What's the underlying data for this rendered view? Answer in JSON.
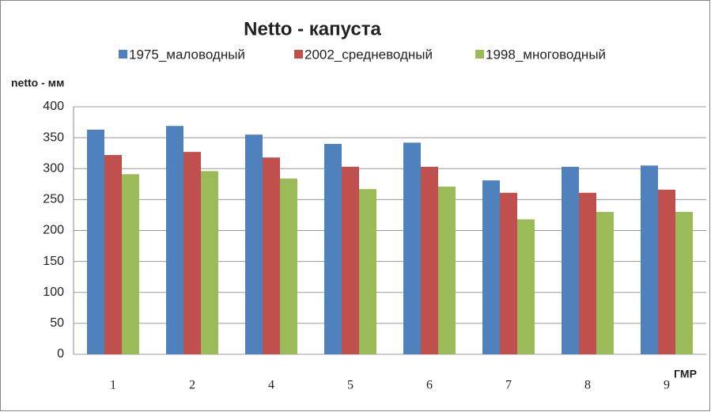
{
  "chart_data": {
    "type": "bar",
    "title": "Netto - капуста",
    "y_label": "netto - мм",
    "x_label": "ГМР",
    "categories": [
      "1",
      "2",
      "4",
      "5",
      "6",
      "7",
      "8",
      "9"
    ],
    "series": [
      {
        "name": "1975_маловодный",
        "color": "#4f81bd",
        "values": [
          363,
          369,
          355,
          340,
          342,
          281,
          303,
          305
        ]
      },
      {
        "name": "2002_средневодный",
        "color": "#c0504d",
        "values": [
          322,
          327,
          318,
          303,
          303,
          261,
          261,
          266
        ]
      },
      {
        "name": "1998_многоводный",
        "color": "#9bbb59",
        "values": [
          291,
          296,
          284,
          267,
          271,
          218,
          230,
          230
        ]
      }
    ],
    "ylim": [
      0,
      400
    ],
    "yticks": [
      0,
      50,
      100,
      150,
      200,
      250,
      300,
      350,
      400
    ],
    "grid": true,
    "legend": "top"
  }
}
